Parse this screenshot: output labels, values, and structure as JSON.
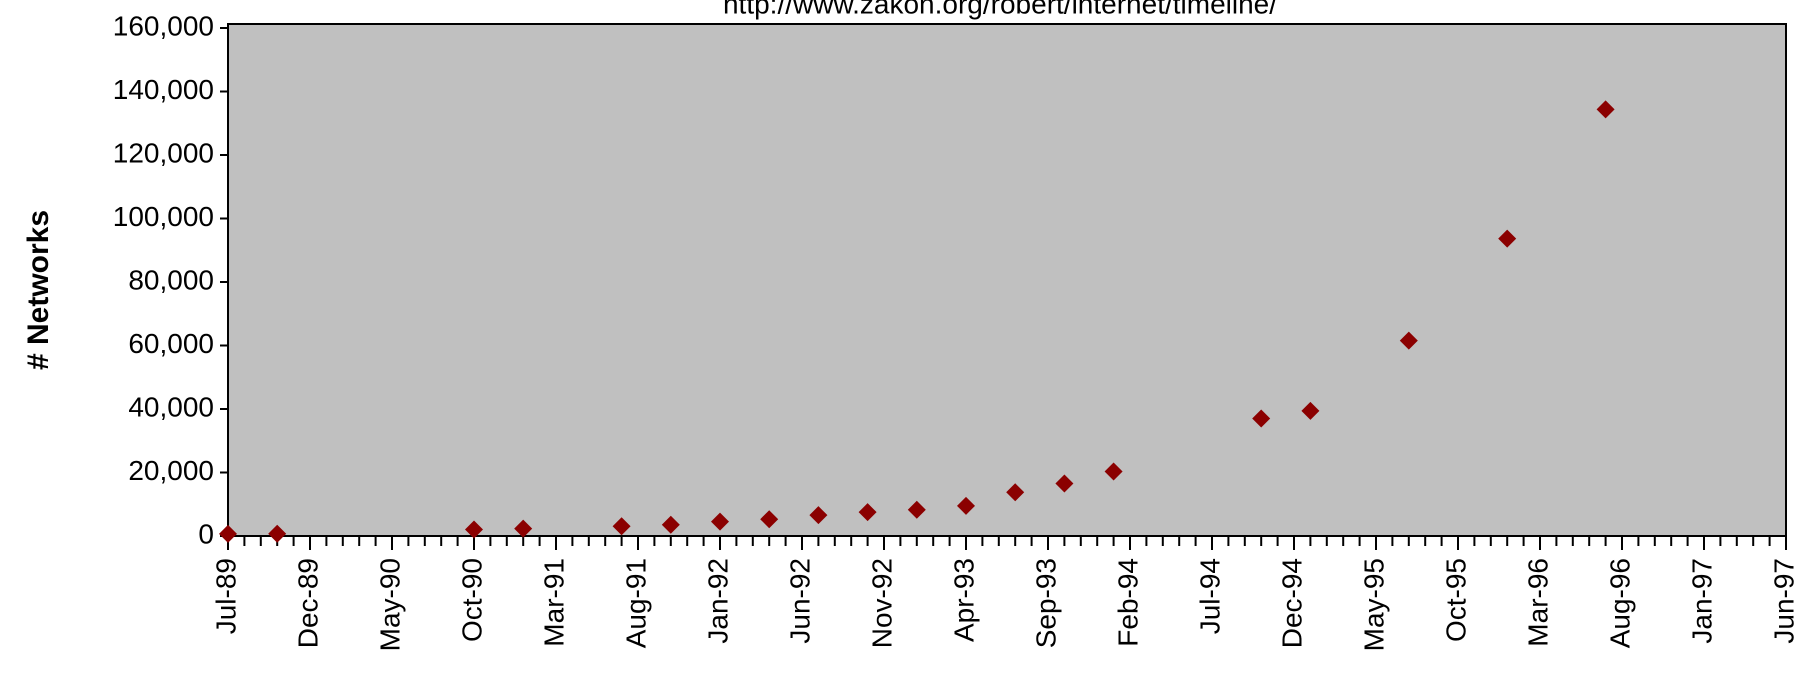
{
  "chart_data": {
    "type": "scatter",
    "subtitle": "http://www.zakon.org/robert/internet/timeline/",
    "ylabel": "# Networks",
    "x": [
      "1989-07",
      "1989-10",
      "1990-10",
      "1991-01",
      "1991-07",
      "1991-10",
      "1992-01",
      "1992-04",
      "1992-07",
      "1992-10",
      "1993-01",
      "1993-04",
      "1993-07",
      "1993-10",
      "1994-01",
      "1994-10",
      "1995-01",
      "1995-07",
      "1996-01",
      "1996-07"
    ],
    "series": [
      {
        "name": "Networks",
        "color": "#8b0000",
        "values": [
          650,
          700,
          2063,
          2338,
          3086,
          3556,
          4526,
          5291,
          6569,
          7505,
          8258,
          9500,
          13767,
          16533,
          20300,
          37022,
          39410,
          61538,
          93671,
          134365
        ]
      }
    ],
    "xlim": [
      "1989-07",
      "1997-06"
    ],
    "xticks": [
      {
        "value": "1989-07",
        "label": "Jul-89"
      },
      {
        "value": "1989-12",
        "label": "Dec-89"
      },
      {
        "value": "1990-05",
        "label": "May-90"
      },
      {
        "value": "1990-10",
        "label": "Oct-90"
      },
      {
        "value": "1991-03",
        "label": "Mar-91"
      },
      {
        "value": "1991-08",
        "label": "Aug-91"
      },
      {
        "value": "1992-01",
        "label": "Jan-92"
      },
      {
        "value": "1992-06",
        "label": "Jun-92"
      },
      {
        "value": "1992-11",
        "label": "Nov-92"
      },
      {
        "value": "1993-04",
        "label": "Apr-93"
      },
      {
        "value": "1993-09",
        "label": "Sep-93"
      },
      {
        "value": "1994-02",
        "label": "Feb-94"
      },
      {
        "value": "1994-07",
        "label": "Jul-94"
      },
      {
        "value": "1994-12",
        "label": "Dec-94"
      },
      {
        "value": "1995-05",
        "label": "May-95"
      },
      {
        "value": "1995-10",
        "label": "Oct-95"
      },
      {
        "value": "1996-03",
        "label": "Mar-96"
      },
      {
        "value": "1996-08",
        "label": "Aug-96"
      },
      {
        "value": "1997-01",
        "label": "Jan-97"
      },
      {
        "value": "1997-06",
        "label": "Jun-97"
      }
    ],
    "ylim": [
      0,
      160000
    ],
    "yticks": [
      0,
      {
        "value": 20000,
        "label": "20,000"
      },
      {
        "value": 40000,
        "label": "40,000"
      },
      {
        "value": 60000,
        "label": "60,000"
      },
      {
        "value": 80000,
        "label": "80,000"
      },
      {
        "value": 100000,
        "label": "100,000"
      },
      {
        "value": 120000,
        "label": "120,000"
      },
      {
        "value": 140000,
        "label": "140,000"
      },
      {
        "value": 160000,
        "label": "160,000"
      }
    ],
    "background": "#c0c0c0"
  }
}
